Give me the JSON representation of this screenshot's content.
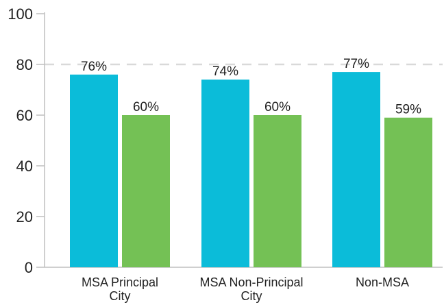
{
  "chart_data": {
    "type": "bar",
    "categories": [
      [
        "MSA Principal",
        "City"
      ],
      [
        "MSA Non-Principal",
        "City"
      ],
      [
        "Non-MSA"
      ]
    ],
    "series": [
      {
        "values": [
          76,
          74,
          77
        ],
        "color": "#0bbcd9",
        "labels": [
          "76%",
          "74%",
          "77%"
        ]
      },
      {
        "values": [
          60,
          60,
          59
        ],
        "color": "#74c155",
        "labels": [
          "60%",
          "60%",
          "59%"
        ]
      }
    ],
    "ylim": [
      0,
      100
    ],
    "yticks": [
      "0",
      "20",
      "40",
      "60",
      "80",
      "100"
    ],
    "reference_line": {
      "value": 80,
      "style": "dashed",
      "color": "#d9d9d9"
    },
    "axis_color": "#bfbfbf",
    "grid": false
  }
}
